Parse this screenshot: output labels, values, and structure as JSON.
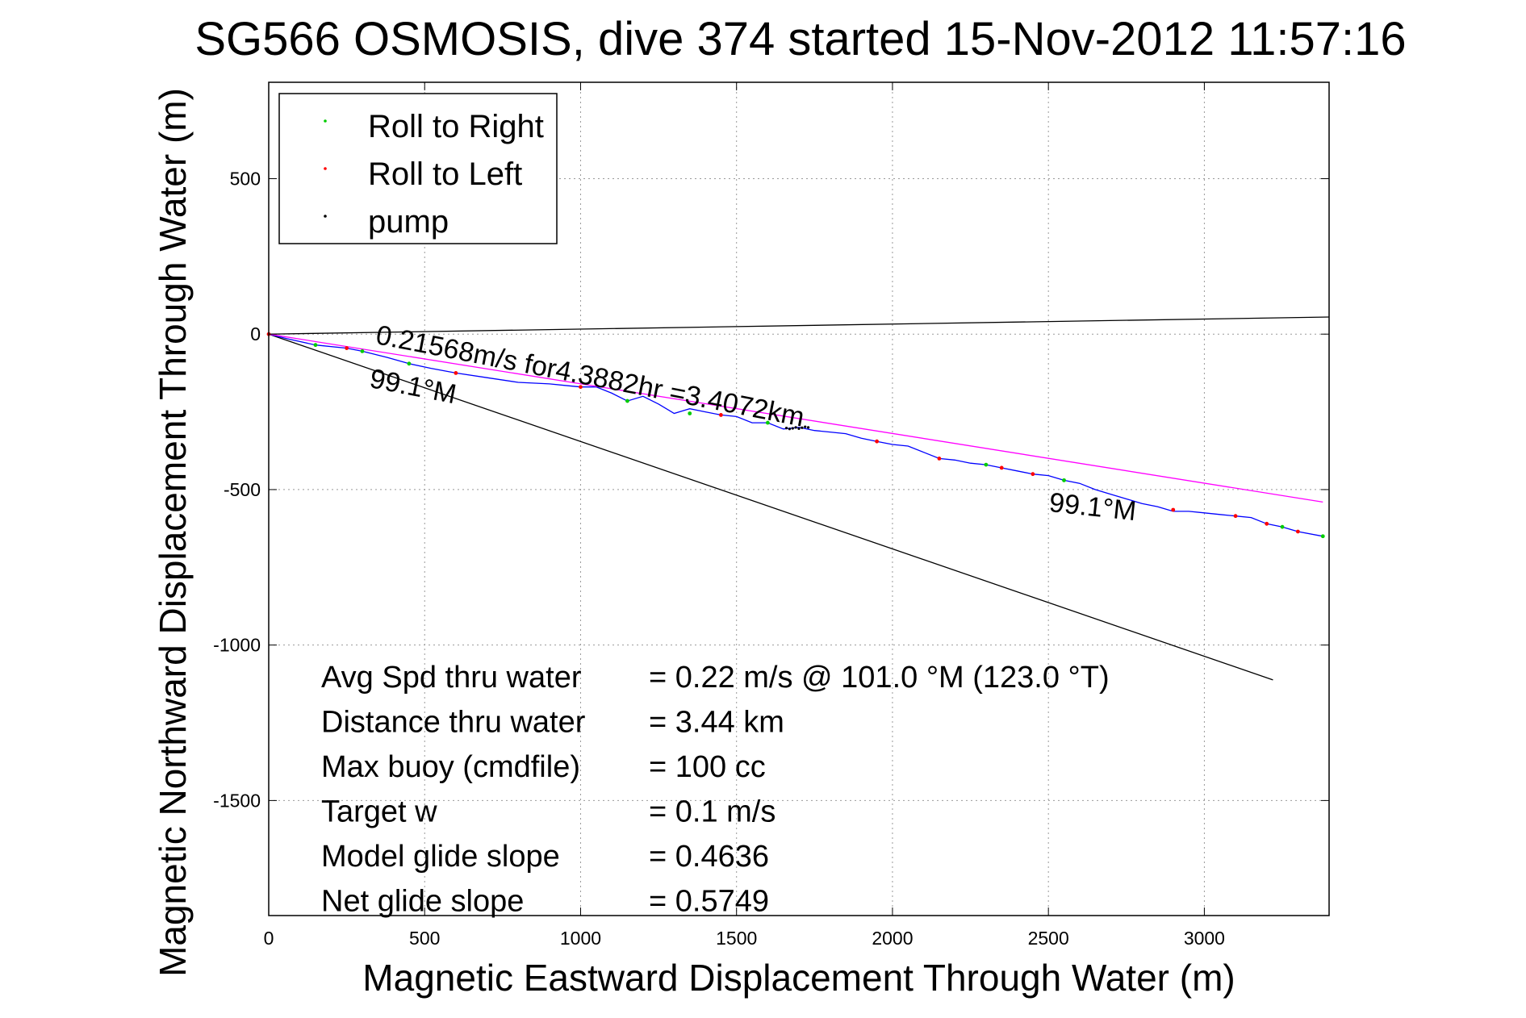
{
  "chart_data": {
    "type": "line",
    "title": "SG566 OSMOSIS, dive 374 started 15-Nov-2012 11:57:16",
    "xlabel": "Magnetic Eastward Displacement Through Water (m)",
    "ylabel": "Magnetic Northward Displacement Through Water (m)",
    "xlim": [
      0,
      3400
    ],
    "ylim": [
      -1870,
      810
    ],
    "xticks": [
      0,
      500,
      1000,
      1500,
      2000,
      2500,
      3000
    ],
    "yticks": [
      500,
      0,
      -500,
      -1000,
      -1500
    ],
    "grid": true,
    "legend_position": "top-left",
    "legend": [
      {
        "label": "Roll to Right",
        "color": "#00cc00"
      },
      {
        "label": "Roll to Left",
        "color": "#ff0000"
      },
      {
        "label": "pump",
        "color": "#000000"
      }
    ],
    "series": [
      {
        "name": "track",
        "color": "#0000ff",
        "x": [
          0,
          60,
          150,
          250,
          300,
          380,
          450,
          520,
          600,
          700,
          800,
          900,
          950,
          1000,
          1050,
          1100,
          1150,
          1200,
          1250,
          1300,
          1350,
          1400,
          1450,
          1500,
          1550,
          1600,
          1650,
          1700,
          1750,
          1800,
          1850,
          1900,
          1950,
          2000,
          2050,
          2100,
          2150,
          2200,
          2250,
          2300,
          2350,
          2400,
          2450,
          2500,
          2550,
          2600,
          2650,
          2700,
          2750,
          2800,
          2850,
          2900,
          2950,
          3000,
          3050,
          3100,
          3150,
          3200,
          3250,
          3300,
          3380
        ],
        "y": [
          0,
          -15,
          -35,
          -45,
          -55,
          -75,
          -95,
          -110,
          -125,
          -140,
          -155,
          -160,
          -165,
          -170,
          -170,
          -190,
          -215,
          -200,
          -225,
          -255,
          -240,
          -250,
          -260,
          -265,
          -285,
          -285,
          -305,
          -300,
          -310,
          -315,
          -320,
          -335,
          -345,
          -355,
          -360,
          -380,
          -400,
          -405,
          -415,
          -420,
          -430,
          -440,
          -450,
          -455,
          -470,
          -480,
          -500,
          -515,
          -530,
          -545,
          -555,
          -570,
          -570,
          -575,
          -580,
          -585,
          -590,
          -610,
          -620,
          -635,
          -650
        ]
      },
      {
        "name": "fit",
        "color": "#ff00ff",
        "x": [
          0,
          3380
        ],
        "y": [
          0,
          -540
        ]
      }
    ],
    "reference_lines": [
      {
        "x": [
          0,
          3400
        ],
        "y": [
          0,
          55
        ],
        "color": "#000000"
      },
      {
        "x": [
          0,
          3220
        ],
        "y": [
          0,
          -1112
        ],
        "color": "#000000"
      }
    ],
    "markers": {
      "roll_to_right": {
        "x": [
          150,
          300,
          450,
          1150,
          1350,
          1600,
          2300,
          2550,
          3250,
          3380
        ],
        "y": [
          -35,
          -55,
          -95,
          -215,
          -255,
          -285,
          -420,
          -470,
          -620,
          -650
        ]
      },
      "roll_to_left": {
        "x": [
          0,
          250,
          600,
          1000,
          1450,
          1950,
          2150,
          2350,
          2450,
          2900,
          3100,
          3200,
          3300
        ],
        "y": [
          0,
          -45,
          -125,
          -170,
          -260,
          -345,
          -400,
          -430,
          -450,
          -565,
          -585,
          -610,
          -635
        ]
      },
      "pump": {
        "x": [
          1660,
          1670,
          1680,
          1690,
          1700,
          1710,
          1720,
          1730
        ],
        "y": [
          -302,
          -305,
          -303,
          -300,
          -304,
          -301,
          -298,
          -300
        ]
      }
    },
    "annotations": [
      {
        "text": "0.21568m/s for4.3882hr =3.4072km",
        "x": 340,
        "y": -30
      },
      {
        "text": "99.1°M",
        "x": 320,
        "y": -170
      },
      {
        "text": "99.1°M",
        "x": 2500,
        "y": -570
      }
    ],
    "stats": [
      {
        "label": "Avg Spd thru water",
        "value": "=  0.22 m/s @ 101.0 °M (123.0 °T)"
      },
      {
        "label": "Distance thru water",
        "value": "=  3.44 km"
      },
      {
        "label": "Max buoy (cmdfile)",
        "value": "= 100 cc"
      },
      {
        "label": "Target w",
        "value": "= 0.1 m/s"
      },
      {
        "label": "Model glide slope",
        "value": "= 0.4636"
      },
      {
        "label": "Net glide slope",
        "value": "= 0.5749"
      }
    ]
  }
}
